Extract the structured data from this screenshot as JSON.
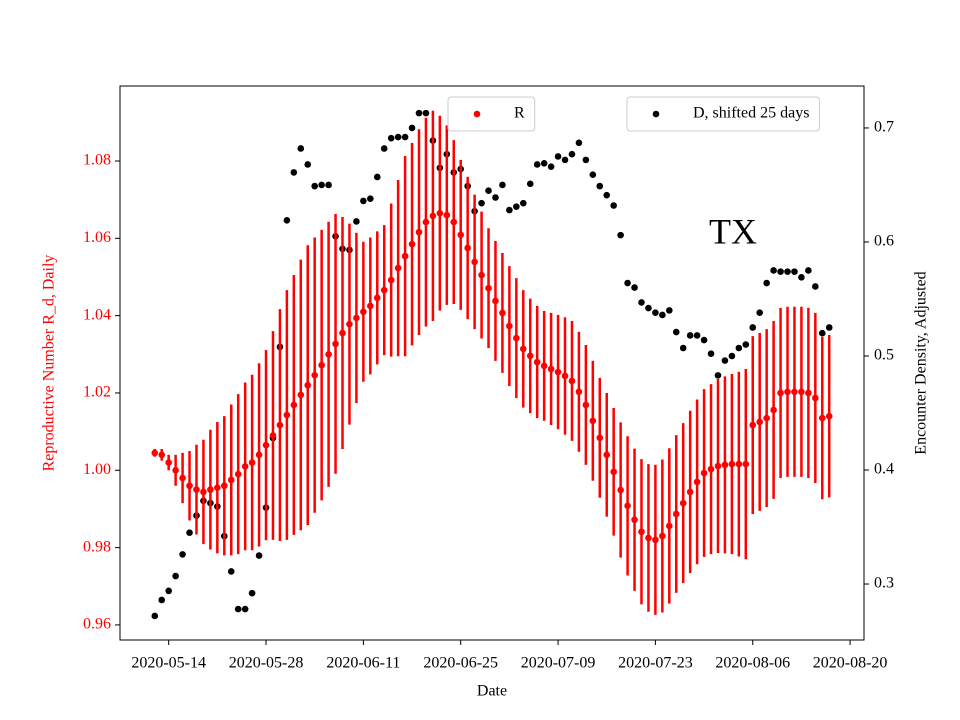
{
  "chart_data": {
    "type": "errorbar-scatter",
    "annotation": "TX",
    "x_label": "Date",
    "y_label": "Reproductive Number R_d, Daily",
    "y2_label": "Encounter Density, Adjusted",
    "x": [
      "2020-05-12",
      "2020-05-13",
      "2020-05-14",
      "2020-05-15",
      "2020-05-16",
      "2020-05-17",
      "2020-05-18",
      "2020-05-19",
      "2020-05-20",
      "2020-05-21",
      "2020-05-22",
      "2020-05-23",
      "2020-05-24",
      "2020-05-25",
      "2020-05-26",
      "2020-05-27",
      "2020-05-28",
      "2020-05-29",
      "2020-05-30",
      "2020-05-31",
      "2020-06-01",
      "2020-06-02",
      "2020-06-03",
      "2020-06-04",
      "2020-06-05",
      "2020-06-06",
      "2020-06-07",
      "2020-06-08",
      "2020-06-09",
      "2020-06-10",
      "2020-06-11",
      "2020-06-12",
      "2020-06-13",
      "2020-06-14",
      "2020-06-15",
      "2020-06-16",
      "2020-06-17",
      "2020-06-18",
      "2020-06-19",
      "2020-06-20",
      "2020-06-21",
      "2020-06-22",
      "2020-06-23",
      "2020-06-24",
      "2020-06-25",
      "2020-06-26",
      "2020-06-27",
      "2020-06-28",
      "2020-06-29",
      "2020-06-30",
      "2020-07-01",
      "2020-07-02",
      "2020-07-03",
      "2020-07-04",
      "2020-07-05",
      "2020-07-06",
      "2020-07-07",
      "2020-07-08",
      "2020-07-09",
      "2020-07-10",
      "2020-07-11",
      "2020-07-12",
      "2020-07-13",
      "2020-07-14",
      "2020-07-15",
      "2020-07-16",
      "2020-07-17",
      "2020-07-18",
      "2020-07-19",
      "2020-07-20",
      "2020-07-21",
      "2020-07-22",
      "2020-07-23",
      "2020-07-24",
      "2020-07-25",
      "2020-07-26",
      "2020-07-27",
      "2020-07-28",
      "2020-07-29",
      "2020-07-30",
      "2020-07-31",
      "2020-08-01",
      "2020-08-02",
      "2020-08-03",
      "2020-08-04",
      "2020-08-05",
      "2020-08-06",
      "2020-08-07",
      "2020-08-08",
      "2020-08-09",
      "2020-08-10",
      "2020-08-11",
      "2020-08-12",
      "2020-08-13",
      "2020-08-14",
      "2020-08-15",
      "2020-08-16",
      "2020-08-17"
    ],
    "series": [
      {
        "name": "R",
        "color": "red",
        "axis": "y",
        "legend": "upper center",
        "values": [
          1.0045,
          1.004,
          1.002,
          1.0,
          0.998,
          0.996,
          0.995,
          0.9944,
          0.995,
          0.9955,
          0.996,
          0.9975,
          0.999,
          1.001,
          1.002,
          1.004,
          1.0065,
          1.009,
          1.0117,
          1.0143,
          1.0169,
          1.0195,
          1.022,
          1.0246,
          1.0272,
          1.03,
          1.0327,
          1.0355,
          1.0378,
          1.0394,
          1.041,
          1.0425,
          1.0446,
          1.0466,
          1.0492,
          1.0523,
          1.0554,
          1.0585,
          1.0616,
          1.0642,
          1.0658,
          1.0665,
          1.066,
          1.0642,
          1.0609,
          1.0575,
          1.0539,
          1.0505,
          1.0471,
          1.0438,
          1.0407,
          1.0373,
          1.0342,
          1.0314,
          1.0296,
          1.028,
          1.027,
          1.0262,
          1.0254,
          1.0244,
          1.0231,
          1.0203,
          1.0169,
          1.0128,
          1.0084,
          1.004,
          0.9996,
          0.9949,
          0.9908,
          0.9872,
          0.9841,
          0.9825,
          0.982,
          0.983,
          0.9856,
          0.9887,
          0.9915,
          0.9944,
          0.997,
          0.9993,
          1.0003,
          1.0011,
          1.0014,
          1.0016,
          1.0016,
          1.0016,
          1.0117,
          1.0125,
          1.0135,
          1.0156,
          1.02,
          1.0203,
          1.0203,
          1.0203,
          1.02,
          1.0187,
          1.0135,
          1.014
        ],
        "errors": [
          0.001,
          0.0015,
          0.002,
          0.004,
          0.0065,
          0.009,
          0.0116,
          0.0135,
          0.0155,
          0.017,
          0.018,
          0.0195,
          0.0207,
          0.0217,
          0.0227,
          0.0237,
          0.0246,
          0.027,
          0.03,
          0.0323,
          0.0336,
          0.035,
          0.0362,
          0.0356,
          0.035,
          0.0343,
          0.0336,
          0.03,
          0.026,
          0.022,
          0.0181,
          0.0177,
          0.0172,
          0.0168,
          0.0198,
          0.0228,
          0.0259,
          0.0262,
          0.0266,
          0.027,
          0.0272,
          0.0252,
          0.0232,
          0.0212,
          0.0194,
          0.0184,
          0.0174,
          0.0164,
          0.0155,
          0.0155,
          0.0155,
          0.0155,
          0.0155,
          0.0152,
          0.0148,
          0.0145,
          0.0142,
          0.0145,
          0.0148,
          0.0152,
          0.0155,
          0.0155,
          0.0155,
          0.0155,
          0.0155,
          0.016,
          0.0165,
          0.0175,
          0.018,
          0.0184,
          0.0188,
          0.0191,
          0.0194,
          0.0198,
          0.0201,
          0.0204,
          0.0207,
          0.021,
          0.0213,
          0.0217,
          0.022,
          0.0225,
          0.0229,
          0.0233,
          0.0239,
          0.0246,
          0.023,
          0.023,
          0.023,
          0.023,
          0.022,
          0.022,
          0.022,
          0.022,
          0.022,
          0.022,
          0.021,
          0.021
        ]
      },
      {
        "name": "D, shifted 25 days",
        "color": "black",
        "axis": "y2",
        "legend": "upper right",
        "values": [
          0.272,
          0.286,
          0.294,
          0.307,
          0.326,
          0.345,
          0.36,
          0.373,
          0.371,
          0.368,
          0.342,
          0.311,
          0.278,
          0.278,
          0.292,
          0.325,
          0.367,
          0.428,
          0.508,
          0.619,
          0.661,
          0.682,
          0.668,
          0.649,
          0.65,
          0.65,
          0.605,
          0.594,
          0.593,
          0.618,
          0.636,
          0.638,
          0.657,
          0.682,
          0.691,
          0.692,
          0.692,
          0.7,
          0.713,
          0.713,
          0.689,
          0.665,
          0.677,
          0.661,
          0.664,
          0.649,
          0.627,
          0.634,
          0.645,
          0.639,
          0.65,
          0.628,
          0.631,
          0.634,
          0.651,
          0.668,
          0.669,
          0.666,
          0.675,
          0.672,
          0.677,
          0.687,
          0.672,
          0.659,
          0.649,
          0.641,
          0.632,
          0.606,
          0.564,
          0.56,
          0.547,
          0.542,
          0.538,
          0.536,
          0.54,
          0.521,
          0.507,
          0.518,
          0.518,
          0.514,
          0.502,
          0.483,
          0.496,
          0.5,
          0.507,
          0.51,
          0.525,
          0.538,
          0.564,
          0.575,
          0.574,
          0.574,
          0.574,
          0.569,
          0.575,
          0.561,
          0.52,
          0.525
        ]
      }
    ],
    "xlim": [
      "2020-05-07",
      "2020-08-22"
    ],
    "xticks": [
      "2020-05-14",
      "2020-05-28",
      "2020-06-11",
      "2020-06-25",
      "2020-07-09",
      "2020-07-23",
      "2020-08-06",
      "2020-08-20"
    ],
    "ylim": [
      0.9561,
      1.0994
    ],
    "yticks": [
      0.96,
      0.98,
      {
        "value": 1,
        "label": "1.00"
      },
      1.02,
      1.04,
      1.06,
      1.08
    ],
    "y_color": "red",
    "y2lim": [
      0.2509,
      0.7368
    ],
    "y2ticks": [
      0.3,
      0.4,
      0.5,
      0.6,
      0.7
    ]
  }
}
